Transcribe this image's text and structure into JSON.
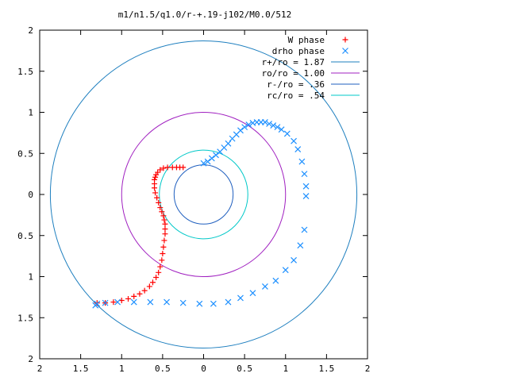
{
  "chart_data": {
    "type": "scatter",
    "title": "m1/n1.5/q1.0/r-+.19-j102/M0.0/512",
    "xlabel": "",
    "ylabel": "",
    "xlim": [
      -2,
      2
    ],
    "ylim": [
      -2,
      2
    ],
    "grid": false,
    "legend_position": "top-right",
    "x_tick_labels": [
      "2",
      "1.5",
      "1",
      "0.5",
      "0",
      "0.5",
      "1",
      "1.5",
      "2"
    ],
    "y_tick_labels": [
      "2",
      "1.5",
      "1",
      "0.5",
      "0",
      "0.5",
      "1",
      "1.5",
      "2"
    ],
    "series": [
      {
        "name": "W phase",
        "marker": "plus",
        "color": "#ff0000",
        "x": [
          -1.3,
          -1.2,
          -1.1,
          -1.0,
          -0.92,
          -0.85,
          -0.78,
          -0.72,
          -0.66,
          -0.62,
          -0.58,
          -0.55,
          -0.53,
          -0.51,
          -0.5,
          -0.49,
          -0.48,
          -0.47,
          -0.47,
          -0.47,
          -0.48,
          -0.49,
          -0.51,
          -0.53,
          -0.55,
          -0.57,
          -0.59,
          -0.6,
          -0.6,
          -0.6,
          -0.59,
          -0.58,
          -0.56,
          -0.53,
          -0.49,
          -0.44,
          -0.38,
          -0.33,
          -0.29,
          -0.25
        ],
        "y": [
          -1.32,
          -1.32,
          -1.31,
          -1.29,
          -1.27,
          -1.24,
          -1.21,
          -1.17,
          -1.12,
          -1.07,
          -1.01,
          -0.95,
          -0.88,
          -0.8,
          -0.72,
          -0.64,
          -0.56,
          -0.48,
          -0.42,
          -0.36,
          -0.31,
          -0.26,
          -0.21,
          -0.16,
          -0.1,
          -0.04,
          0.02,
          0.08,
          0.13,
          0.18,
          0.21,
          0.24,
          0.27,
          0.3,
          0.32,
          0.33,
          0.33,
          0.33,
          0.33,
          0.33
        ]
      },
      {
        "name": "drho phase",
        "marker": "x",
        "color": "#1e90ff",
        "x": [
          0.0,
          0.05,
          0.1,
          0.15,
          0.2,
          0.25,
          0.3,
          0.35,
          0.4,
          0.45,
          0.5,
          0.55,
          0.6,
          0.65,
          0.7,
          0.75,
          0.8,
          0.85,
          0.9,
          0.95,
          1.02,
          1.1,
          1.15,
          1.2,
          1.23,
          1.25,
          1.25,
          1.23,
          1.18,
          1.1,
          1.0,
          0.88,
          0.75,
          0.6,
          0.45,
          0.3,
          0.12,
          -0.05,
          -0.25,
          -0.45,
          -0.65,
          -0.85,
          -1.05,
          -1.2,
          -1.3,
          -1.32
        ],
        "y": [
          0.38,
          0.4,
          0.44,
          0.48,
          0.52,
          0.57,
          0.62,
          0.68,
          0.73,
          0.78,
          0.82,
          0.85,
          0.87,
          0.88,
          0.88,
          0.88,
          0.86,
          0.84,
          0.82,
          0.79,
          0.74,
          0.65,
          0.55,
          0.4,
          0.25,
          0.1,
          -0.02,
          -0.43,
          -0.62,
          -0.8,
          -0.92,
          -1.05,
          -1.12,
          -1.2,
          -1.26,
          -1.31,
          -1.33,
          -1.33,
          -1.32,
          -1.31,
          -1.31,
          -1.31,
          -1.31,
          -1.32,
          -1.33,
          -1.35
        ]
      },
      {
        "name": "r+/ro = 1.87",
        "type": "circle",
        "radius": 1.87,
        "color": "#1e7fbf"
      },
      {
        "name": "ro/ro = 1.00",
        "type": "circle",
        "radius": 1.0,
        "color": "#a020c0"
      },
      {
        "name": "r-/ro = .36",
        "type": "circle",
        "radius": 0.36,
        "color": "#1f5fbf"
      },
      {
        "name": "rc/ro = .54",
        "type": "circle",
        "radius": 0.54,
        "color": "#00c8c8"
      }
    ]
  }
}
